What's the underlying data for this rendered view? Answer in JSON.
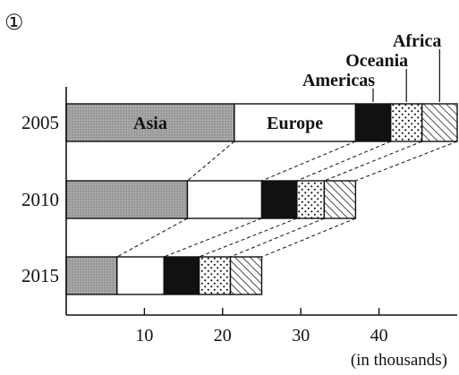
{
  "figure_label": "①",
  "chart_data": {
    "type": "bar",
    "orientation": "horizontal",
    "stacked": true,
    "categories": [
      "2005",
      "2010",
      "2015"
    ],
    "series": [
      {
        "name": "Asia",
        "values": [
          21.5,
          15.5,
          6.5
        ]
      },
      {
        "name": "Europe",
        "values": [
          15.5,
          9.5,
          6.0
        ]
      },
      {
        "name": "Americas",
        "values": [
          4.5,
          4.5,
          4.5
        ]
      },
      {
        "name": "Oceania",
        "values": [
          4.0,
          3.5,
          4.0
        ]
      },
      {
        "name": "Africa",
        "values": [
          4.5,
          4.0,
          4.0
        ]
      }
    ],
    "xlim": [
      0,
      50
    ],
    "x_ticks": [
      10,
      20,
      30,
      40
    ],
    "xlabel": "(in thousands)",
    "ylabel": "",
    "title": "",
    "legend": "labels inside and above the top bar",
    "grid": false,
    "connector_lines": "dashed",
    "fills": {
      "Asia": "#a8a8a8",
      "Europe": "#ffffff",
      "Americas": "#111111",
      "Oceania": "dotted",
      "Africa": "hatched"
    }
  }
}
